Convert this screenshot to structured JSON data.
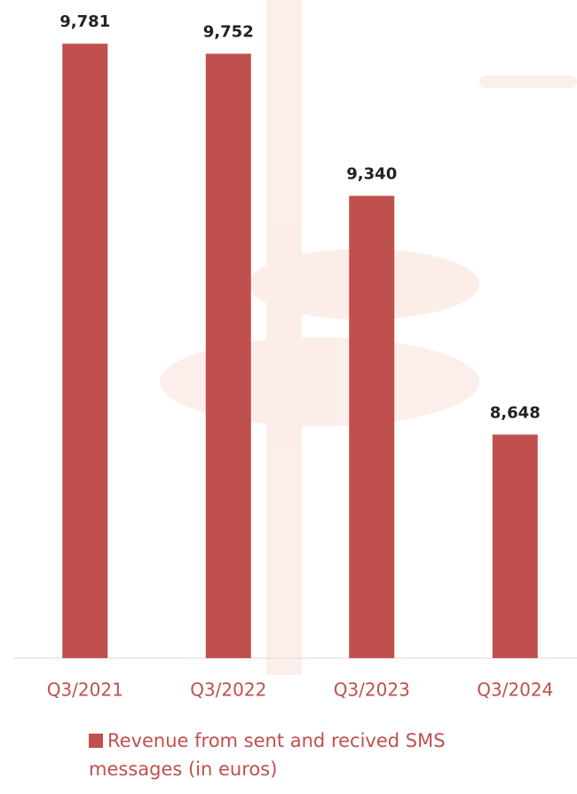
{
  "chart_data": {
    "type": "bar",
    "categories": [
      "Q3/2021",
      "Q3/2022",
      "Q3/2023",
      "Q3/2024"
    ],
    "series": [
      {
        "name": "Revenue from sent and recived SMS messages (in euros)",
        "color": "#c0504d",
        "values": [
          9781,
          9752,
          9340,
          8648
        ],
        "value_labels": [
          "9,781",
          "9,752",
          "9,340",
          "8,648"
        ]
      }
    ],
    "ylim": [
      8000,
      9900
    ],
    "grid": false
  }
}
